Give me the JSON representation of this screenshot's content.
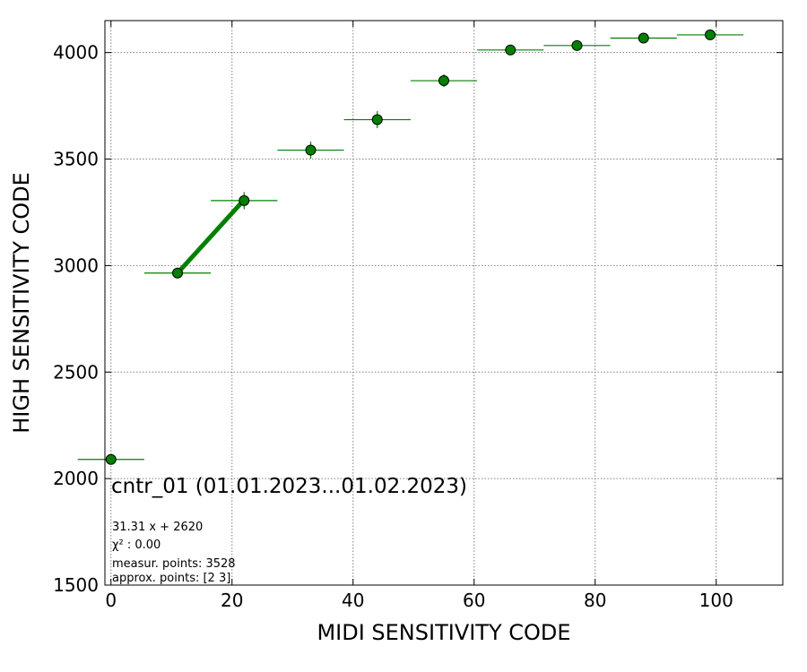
{
  "chart_data": {
    "type": "scatter",
    "title": "",
    "xlabel": "MIDI SENSITIVITY CODE",
    "ylabel": "HIGH SENSITIVITY CODE",
    "xlim": [
      -1,
      111
    ],
    "ylim": [
      1500,
      4150
    ],
    "grid": true,
    "x_ticks": [
      0,
      20,
      40,
      60,
      80,
      100
    ],
    "y_ticks": [
      1500,
      2000,
      2500,
      3000,
      3500,
      4000
    ],
    "x_err": 5.5,
    "points": [
      {
        "x": 0,
        "y": 2090,
        "y_err": 0
      },
      {
        "x": 11,
        "y": 2965,
        "y_err": 25
      },
      {
        "x": 22,
        "y": 3305,
        "y_err": 40
      },
      {
        "x": 33,
        "y": 3542,
        "y_err": 40
      },
      {
        "x": 44,
        "y": 3685,
        "y_err": 40
      },
      {
        "x": 55,
        "y": 3868,
        "y_err": 30
      },
      {
        "x": 66,
        "y": 4012,
        "y_err": 15
      },
      {
        "x": 77,
        "y": 4033,
        "y_err": 15
      },
      {
        "x": 88,
        "y": 4068,
        "y_err": 15
      },
      {
        "x": 99,
        "y": 4083,
        "y_err": 15
      }
    ],
    "fit_line": {
      "x": [
        11,
        22
      ],
      "y": [
        2964.4,
        3308.8
      ]
    },
    "colors": {
      "marker": "#008000",
      "errorbar": "#008000",
      "fit": "#008000"
    },
    "annotation_main": "cntr_01 (01.01.2023...01.02.2023)",
    "annotation_lines": [
      "31.31 x + 2620",
      "χ² : 0.00",
      "measur. points: 3528",
      "approx. points: [2 3]"
    ]
  }
}
